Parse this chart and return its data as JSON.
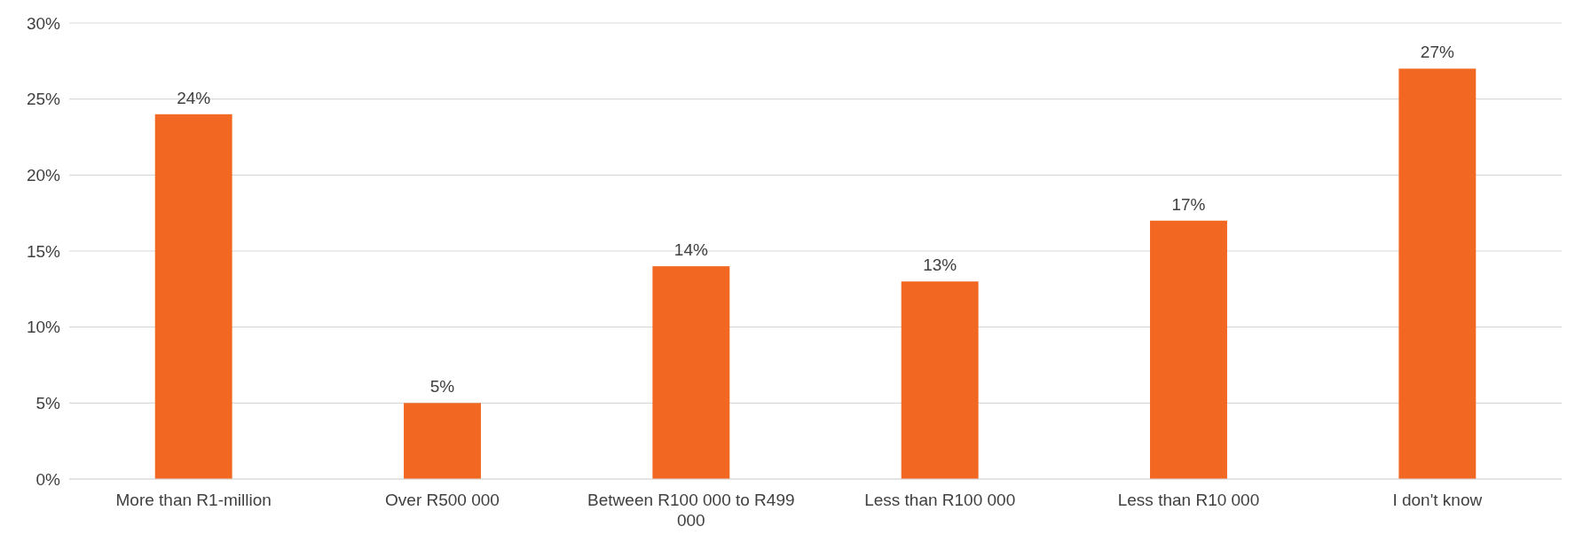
{
  "chart_data": {
    "type": "bar",
    "categories": [
      "More than R1-million",
      "Over R500 000",
      "Between R100 000 to R499 000",
      "Less than R100 000",
      "Less than R10 000",
      "I don't know"
    ],
    "values": [
      24,
      5,
      14,
      13,
      17,
      27
    ],
    "color": "#f26722",
    "ylim": [
      0,
      30
    ],
    "yticks": [
      {
        "value": 0,
        "label": "0%"
      },
      {
        "value": 5,
        "label": "5%"
      },
      {
        "value": 10,
        "label": "10%"
      },
      {
        "value": 15,
        "label": "15%"
      },
      {
        "value": 20,
        "label": "20%"
      },
      {
        "value": 25,
        "label": "25%"
      },
      {
        "value": 30,
        "label": "30%"
      }
    ],
    "value_labels": [
      "24%",
      "5%",
      "14%",
      "13%",
      "17%",
      "27%"
    ],
    "grid": "y"
  }
}
